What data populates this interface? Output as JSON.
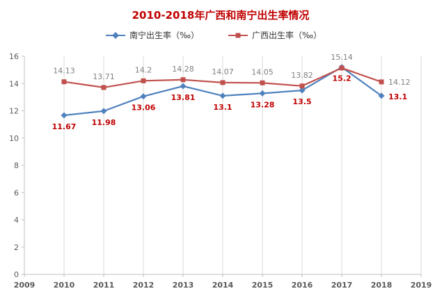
{
  "chart_data": {
    "type": "line",
    "title": "2010-2018年广西和南宁出生率情况",
    "x": [
      2010,
      2011,
      2012,
      2013,
      2014,
      2015,
      2016,
      2017,
      2018
    ],
    "xlim": [
      2009,
      2019
    ],
    "x_ticks": [
      2009,
      2010,
      2011,
      2012,
      2013,
      2014,
      2015,
      2016,
      2017,
      2018,
      2019
    ],
    "ylim": [
      0,
      16
    ],
    "y_ticks": [
      0,
      2,
      4,
      6,
      8,
      10,
      12,
      14,
      16
    ],
    "grid": "vertical",
    "legend_position": "top",
    "series": [
      {
        "name": "南宁出生率（‰）",
        "values": [
          11.67,
          11.98,
          13.06,
          13.81,
          13.1,
          13.28,
          13.5,
          15.2,
          13.1
        ],
        "labels": [
          "11.67",
          "11.98",
          "13.06",
          "13.81",
          "13.1",
          "13.28",
          "13.5",
          "15.2",
          "13.1"
        ],
        "color": "#4F81BD",
        "label_color": "#C00000",
        "marker": "diamond"
      },
      {
        "name": "广西出生率（‰）",
        "values": [
          14.13,
          13.71,
          14.2,
          14.28,
          14.07,
          14.05,
          13.82,
          15.14,
          14.12
        ],
        "labels": [
          "14.13",
          "13.71",
          "14.2",
          "14.28",
          "14.07",
          "14.05",
          "13.82",
          "15.14",
          "14.12"
        ],
        "color": "#C0504D",
        "label_color": "#7F7F7F",
        "marker": "square"
      }
    ]
  },
  "colors": {
    "title": "#C00000",
    "axis": "#BFBFBF",
    "grid": "#D9D9D9"
  }
}
